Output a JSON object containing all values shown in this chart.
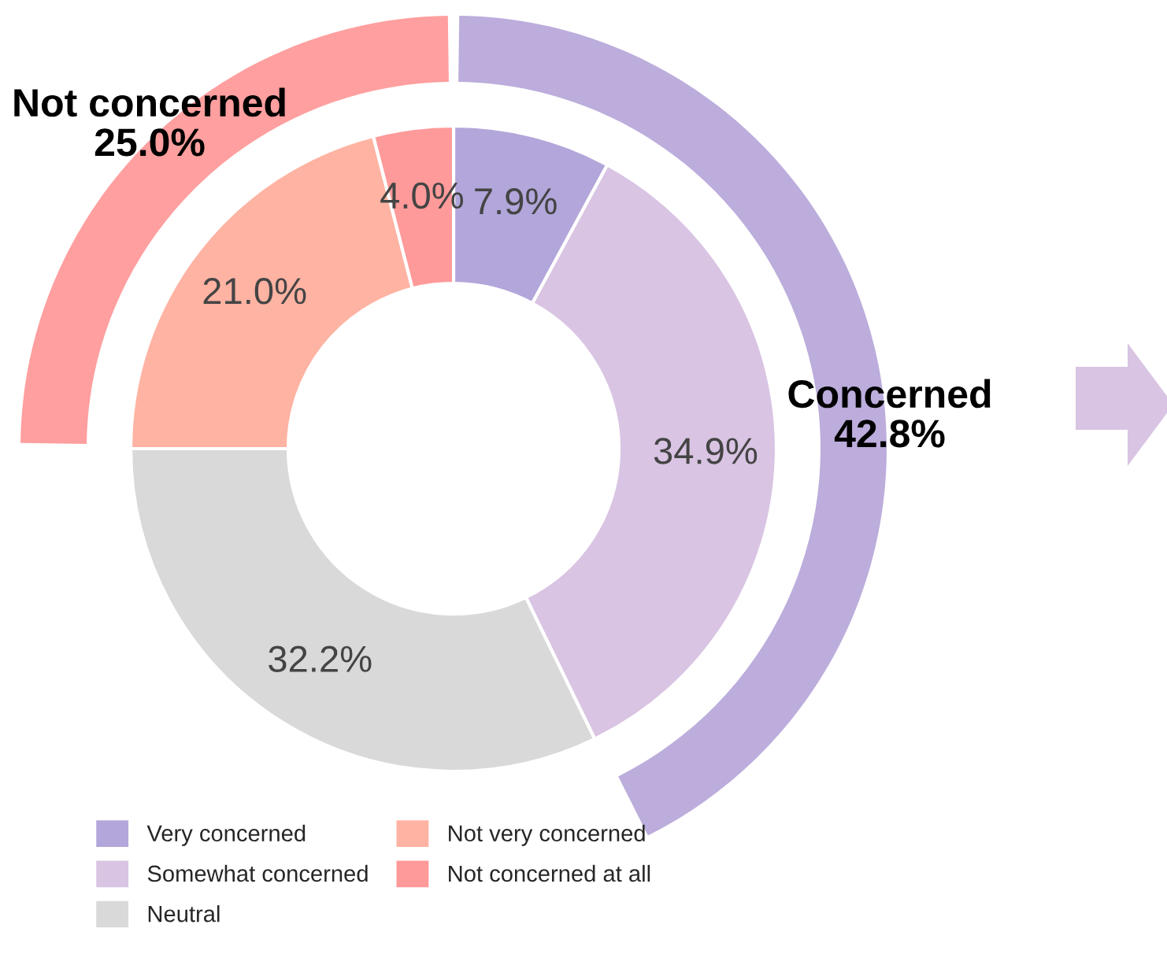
{
  "chart_data": {
    "type": "donut",
    "legend": "bottom",
    "categories": [
      "Very concerned",
      "Somewhat concerned",
      "Neutral",
      "Not very concerned",
      "Not concerned at all"
    ],
    "series": [
      {
        "values": [
          7.9,
          34.9,
          32.2,
          21.0,
          4.0
        ],
        "value_labels": [
          "7.9%",
          "34.9%",
          "32.2%",
          "21.0%",
          "4.0%"
        ],
        "colors": [
          "#b3a6da",
          "#d9c4e3",
          "#d9d9d9",
          "#ffb3a3",
          "#ff9a9a"
        ]
      },
      {
        "values": [
          42.8,
          null,
          null,
          25.0,
          null
        ],
        "value_labels": [
          "42.8%",
          null,
          null,
          "25.0%",
          null
        ],
        "colors": [
          "#bcaddc",
          null,
          null,
          "#ff9f9f",
          null
        ]
      }
    ],
    "annotations": [
      "Concerned",
      "Not concerned"
    ]
  }
}
